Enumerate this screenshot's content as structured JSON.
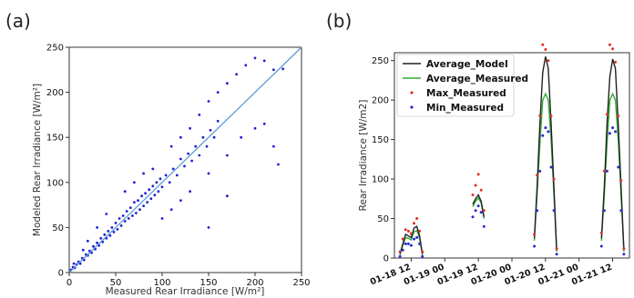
{
  "chart_data": [
    {
      "type": "scatter",
      "panel_label": "(a)",
      "xlabel": "Measured Rear Irradiance [W/m²]",
      "ylabel": "Modeled Rear Irradiance [W/m²]",
      "xlim": [
        0,
        250
      ],
      "ylim": [
        0,
        250
      ],
      "xticks": [
        0,
        50,
        100,
        150,
        200,
        250
      ],
      "yticks": [
        0,
        50,
        100,
        150,
        200,
        250
      ],
      "grid": false,
      "colors": {
        "points": "#1f1fd6",
        "line": "#5b9bd5"
      },
      "reference_line": {
        "x": [
          0,
          250
        ],
        "y": [
          0,
          250
        ]
      },
      "points_description": "dense cluster along the 1:1 line with wider scatter above 100 W/m2",
      "points": [
        [
          2,
          3
        ],
        [
          4,
          6
        ],
        [
          6,
          5
        ],
        [
          8,
          9
        ],
        [
          10,
          12
        ],
        [
          12,
          10
        ],
        [
          14,
          16
        ],
        [
          16,
          14
        ],
        [
          18,
          20
        ],
        [
          20,
          19
        ],
        [
          22,
          24
        ],
        [
          24,
          22
        ],
        [
          26,
          29
        ],
        [
          28,
          26
        ],
        [
          30,
          33
        ],
        [
          32,
          30
        ],
        [
          34,
          38
        ],
        [
          36,
          34
        ],
        [
          38,
          42
        ],
        [
          40,
          38
        ],
        [
          42,
          46
        ],
        [
          44,
          41
        ],
        [
          46,
          50
        ],
        [
          48,
          45
        ],
        [
          50,
          55
        ],
        [
          52,
          48
        ],
        [
          54,
          60
        ],
        [
          56,
          52
        ],
        [
          58,
          63
        ],
        [
          60,
          57
        ],
        [
          62,
          68
        ],
        [
          64,
          60
        ],
        [
          66,
          72
        ],
        [
          68,
          63
        ],
        [
          70,
          78
        ],
        [
          72,
          66
        ],
        [
          74,
          80
        ],
        [
          76,
          70
        ],
        [
          78,
          85
        ],
        [
          80,
          74
        ],
        [
          82,
          88
        ],
        [
          84,
          78
        ],
        [
          86,
          92
        ],
        [
          88,
          82
        ],
        [
          90,
          96
        ],
        [
          92,
          86
        ],
        [
          94,
          100
        ],
        [
          96,
          90
        ],
        [
          98,
          104
        ],
        [
          100,
          95
        ],
        [
          104,
          108
        ],
        [
          108,
          100
        ],
        [
          112,
          115
        ],
        [
          116,
          108
        ],
        [
          120,
          126
        ],
        [
          124,
          118
        ],
        [
          128,
          132
        ],
        [
          132,
          124
        ],
        [
          136,
          140
        ],
        [
          140,
          130
        ],
        [
          144,
          150
        ],
        [
          148,
          140
        ],
        [
          152,
          158
        ],
        [
          156,
          150
        ],
        [
          160,
          168
        ],
        [
          110,
          140
        ],
        [
          120,
          150
        ],
        [
          130,
          160
        ],
        [
          140,
          175
        ],
        [
          150,
          190
        ],
        [
          160,
          200
        ],
        [
          170,
          210
        ],
        [
          180,
          220
        ],
        [
          190,
          230
        ],
        [
          200,
          238
        ],
        [
          210,
          235
        ],
        [
          220,
          225
        ],
        [
          230,
          226
        ],
        [
          100,
          60
        ],
        [
          110,
          70
        ],
        [
          120,
          80
        ],
        [
          130,
          90
        ],
        [
          150,
          110
        ],
        [
          170,
          130
        ],
        [
          185,
          150
        ],
        [
          200,
          160
        ],
        [
          210,
          165
        ],
        [
          220,
          140
        ],
        [
          225,
          120
        ],
        [
          170,
          85
        ],
        [
          150,
          50
        ],
        [
          60,
          90
        ],
        [
          70,
          100
        ],
        [
          80,
          110
        ],
        [
          90,
          115
        ],
        [
          40,
          65
        ],
        [
          30,
          50
        ],
        [
          20,
          35
        ],
        [
          15,
          25
        ],
        [
          5,
          10
        ]
      ]
    },
    {
      "type": "line",
      "panel_label": "(b)",
      "ylabel": "Rear Irradiance [W/m2]",
      "xlabel": "",
      "ylim": [
        0,
        260
      ],
      "yticks": [
        0,
        50,
        100,
        150,
        200,
        250
      ],
      "xlim": [
        "01-18 06:00",
        "01-21 18:00"
      ],
      "xtick_labels": [
        "01-18 12",
        "01-19 00",
        "01-19 12",
        "01-20 00",
        "01-20 12",
        "01-21 00",
        "01-21 12"
      ],
      "legend_position": "top-left",
      "grid": false,
      "segments": [
        {
          "x": [
            "01-18 08:00",
            "01-18 09:00",
            "01-18 10:00",
            "01-18 11:00",
            "01-18 12:00",
            "01-18 13:00",
            "01-18 14:00",
            "01-18 15:00",
            "01-18 16:00"
          ],
          "Average_Model": [
            5,
            18,
            30,
            28,
            26,
            38,
            40,
            28,
            5
          ],
          "Average_Measured": [
            4,
            16,
            26,
            25,
            23,
            33,
            35,
            25,
            4
          ],
          "Max_Measured": [
            8,
            24,
            36,
            34,
            31,
            44,
            50,
            34,
            8
          ],
          "Min_Measured": [
            2,
            10,
            18,
            18,
            16,
            24,
            26,
            18,
            2
          ]
        },
        {
          "x": [
            "01-19 10:00",
            "01-19 11:00",
            "01-19 12:00",
            "01-19 13:00",
            "01-19 14:00"
          ],
          "Average_Model": [
            68,
            75,
            80,
            72,
            52
          ],
          "Average_Measured": [
            65,
            72,
            76,
            70,
            50
          ],
          "Max_Measured": [
            80,
            92,
            106,
            86,
            60
          ],
          "Min_Measured": [
            52,
            60,
            66,
            58,
            40
          ]
        },
        {
          "x": [
            "01-20 08:00",
            "01-20 09:00",
            "01-20 10:00",
            "01-20 11:00",
            "01-20 12:00",
            "01-20 13:00",
            "01-20 14:00",
            "01-20 15:00",
            "01-20 16:00"
          ],
          "Average_Model": [
            25,
            90,
            170,
            235,
            255,
            240,
            170,
            90,
            10
          ],
          "Average_Measured": [
            22,
            80,
            145,
            200,
            208,
            200,
            150,
            80,
            8
          ],
          "Max_Measured": [
            30,
            105,
            180,
            270,
            264,
            250,
            180,
            100,
            12
          ],
          "Min_Measured": [
            15,
            60,
            110,
            155,
            165,
            160,
            115,
            60,
            5
          ]
        },
        {
          "x": [
            "01-21 08:00",
            "01-21 09:00",
            "01-21 10:00",
            "01-21 11:00",
            "01-21 12:00",
            "01-21 13:00",
            "01-21 14:00",
            "01-21 15:00",
            "01-21 16:00"
          ],
          "Average_Model": [
            25,
            90,
            170,
            230,
            252,
            240,
            170,
            90,
            10
          ],
          "Average_Measured": [
            22,
            80,
            145,
            200,
            208,
            200,
            150,
            80,
            8
          ],
          "Max_Measured": [
            32,
            110,
            182,
            270,
            265,
            248,
            180,
            98,
            12
          ],
          "Min_Measured": [
            15,
            60,
            110,
            158,
            165,
            160,
            115,
            60,
            5
          ]
        }
      ],
      "series": [
        {
          "name": "Average_Model",
          "style": "line",
          "color": "#222222"
        },
        {
          "name": "Average_Measured",
          "style": "line",
          "color": "#33aa33"
        },
        {
          "name": "Max_Measured",
          "style": "dots",
          "color": "#e0302a"
        },
        {
          "name": "Min_Measured",
          "style": "dots",
          "color": "#2a2ad6"
        }
      ]
    }
  ]
}
